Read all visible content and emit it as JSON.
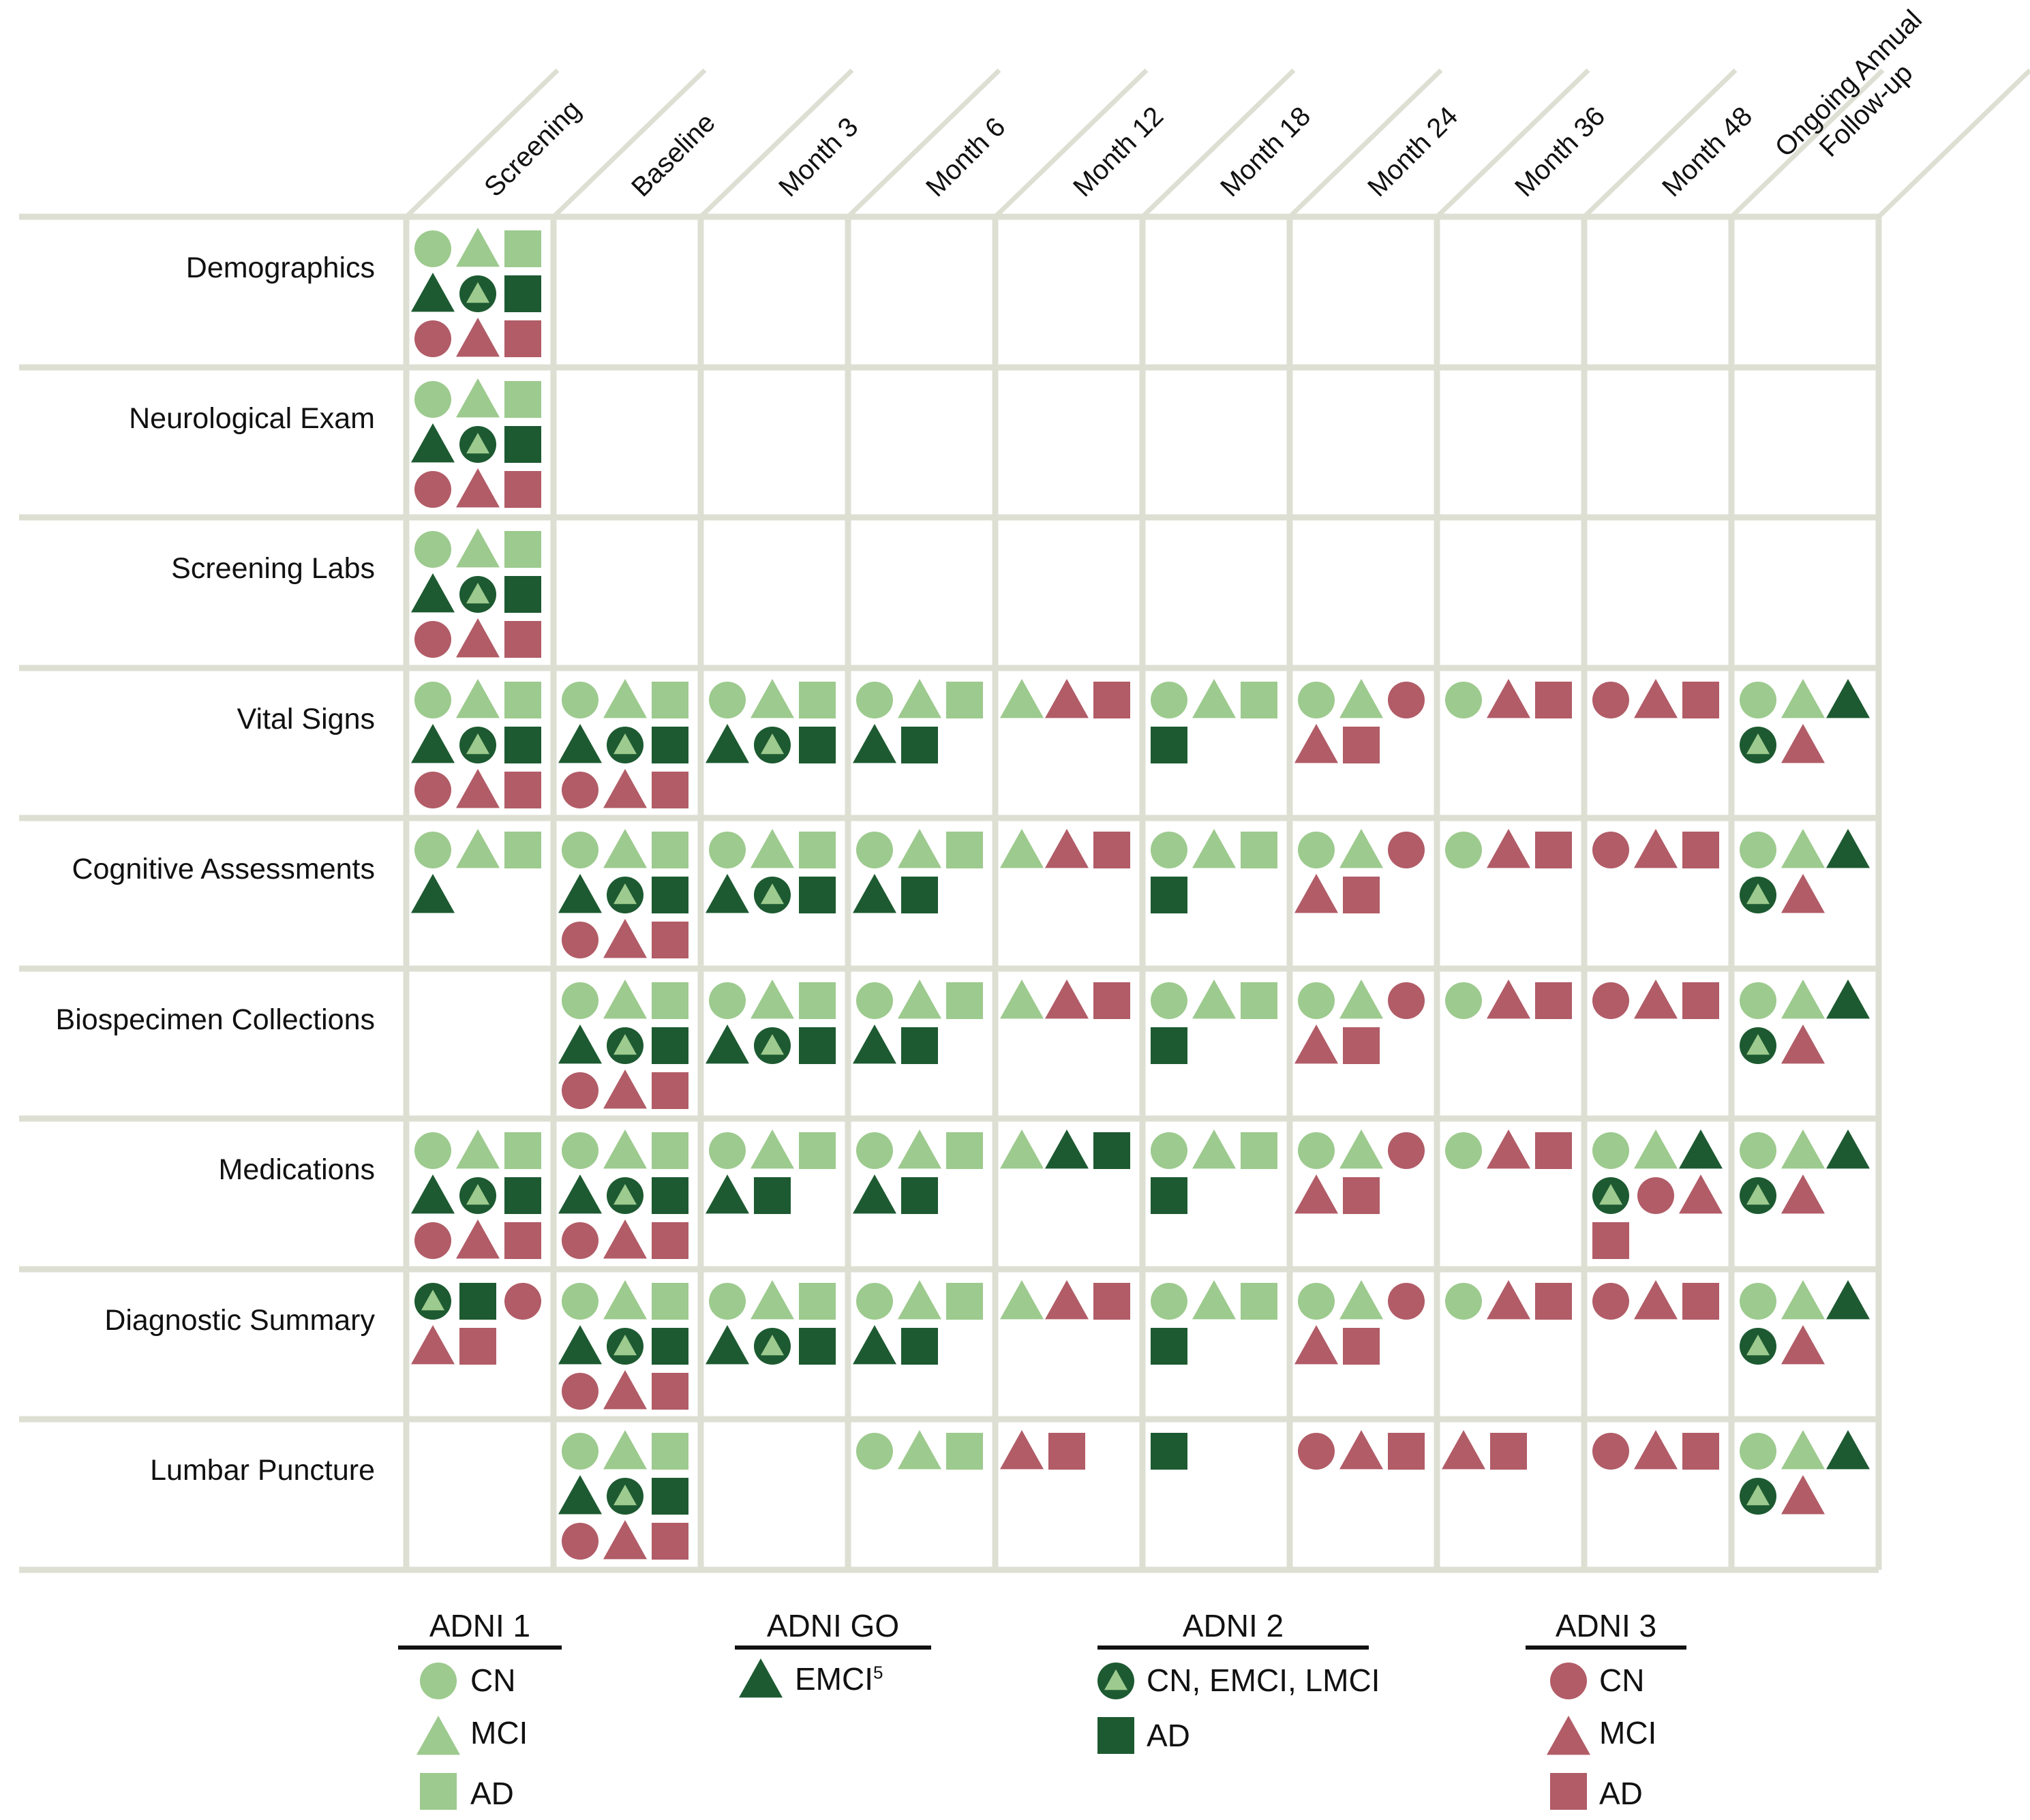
{
  "colors": {
    "adni1": "#9dca8e",
    "adnigo": "#1d5a31",
    "adni2": "#1d5a31",
    "adni2_inner": "#9dca8e",
    "adni3": "#b15c67",
    "gridline": "#dedfd3"
  },
  "columns": [
    "Screening",
    "Baseline",
    "Month 3",
    "Month 6",
    "Month 12",
    "Month 18",
    "Month 24",
    "Month 36",
    "Month 48",
    "Ongoing Annual\nFollow-up"
  ],
  "rows": [
    {
      "label": "Demographics",
      "cells": [
        [
          "c1",
          "t1",
          "s1",
          "tG",
          "c2",
          "s2",
          "c3",
          "t3",
          "s3"
        ],
        [],
        [],
        [],
        [],
        [],
        [],
        [],
        [],
        []
      ]
    },
    {
      "label": "Neurological Exam",
      "cells": [
        [
          "c1",
          "t1",
          "s1",
          "tG",
          "c2",
          "s2",
          "c3",
          "t3",
          "s3"
        ],
        [],
        [],
        [],
        [],
        [],
        [],
        [],
        [],
        []
      ]
    },
    {
      "label": "Screening Labs",
      "cells": [
        [
          "c1",
          "t1",
          "s1",
          "tG",
          "c2",
          "s2",
          "c3",
          "t3",
          "s3"
        ],
        [],
        [],
        [],
        [],
        [],
        [],
        [],
        [],
        []
      ]
    },
    {
      "label": "Vital Signs",
      "cells": [
        [
          "c1",
          "t1",
          "s1",
          "tG",
          "c2",
          "s2",
          "c3",
          "t3",
          "s3"
        ],
        [
          "c1",
          "t1",
          "s1",
          "tG",
          "c2",
          "s2",
          "c3",
          "t3",
          "s3"
        ],
        [
          "c1",
          "t1",
          "s1",
          "tG",
          "c2",
          "s2"
        ],
        [
          "c1",
          "t1",
          "s1",
          "tG",
          "s2"
        ],
        [
          "t1",
          "t3",
          "s3"
        ],
        [
          "c1",
          "t1",
          "s1",
          "s2"
        ],
        [
          "c1",
          "t1",
          "c3",
          "t3",
          "s3"
        ],
        [
          "c1",
          "t3",
          "s3"
        ],
        [
          "c3",
          "t3",
          "s3"
        ],
        [
          "c1",
          "t1",
          "tG",
          "c2",
          "t3"
        ]
      ]
    },
    {
      "label": "Cognitive Assessments",
      "cells": [
        [
          "c1",
          "t1",
          "s1",
          "tG"
        ],
        [
          "c1",
          "t1",
          "s1",
          "tG",
          "c2",
          "s2",
          "c3",
          "t3",
          "s3"
        ],
        [
          "c1",
          "t1",
          "s1",
          "tG",
          "c2",
          "s2"
        ],
        [
          "c1",
          "t1",
          "s1",
          "tG",
          "s2"
        ],
        [
          "t1",
          "t3",
          "s3"
        ],
        [
          "c1",
          "t1",
          "s1",
          "s2"
        ],
        [
          "c1",
          "t1",
          "c3",
          "t3",
          "s3"
        ],
        [
          "c1",
          "t3",
          "s3"
        ],
        [
          "c3",
          "t3",
          "s3"
        ],
        [
          "c1",
          "t1",
          "tG",
          "c2",
          "t3"
        ]
      ]
    },
    {
      "label": "Biospecimen Collections",
      "cells": [
        [],
        [
          "c1",
          "t1",
          "s1",
          "tG",
          "c2",
          "s2",
          "c3",
          "t3",
          "s3"
        ],
        [
          "c1",
          "t1",
          "s1",
          "tG",
          "c2",
          "s2"
        ],
        [
          "c1",
          "t1",
          "s1",
          "tG",
          "s2"
        ],
        [
          "t1",
          "t3",
          "s3"
        ],
        [
          "c1",
          "t1",
          "s1",
          "s2"
        ],
        [
          "c1",
          "t1",
          "c3",
          "t3",
          "s3"
        ],
        [
          "c1",
          "t3",
          "s3"
        ],
        [
          "c3",
          "t3",
          "s3"
        ],
        [
          "c1",
          "t1",
          "tG",
          "c2",
          "t3"
        ]
      ]
    },
    {
      "label": "Medications",
      "cells": [
        [
          "c1",
          "t1",
          "s1",
          "tG",
          "c2",
          "s2",
          "c3",
          "t3",
          "s3"
        ],
        [
          "c1",
          "t1",
          "s1",
          "tG",
          "c2",
          "s2",
          "c3",
          "t3",
          "s3"
        ],
        [
          "c1",
          "t1",
          "s1",
          "tG",
          "s2"
        ],
        [
          "c1",
          "t1",
          "s1",
          "tG",
          "s2"
        ],
        [
          "t1",
          "tG",
          "s2"
        ],
        [
          "c1",
          "t1",
          "s1",
          "s2"
        ],
        [
          "c1",
          "t1",
          "c3",
          "t3",
          "s3"
        ],
        [
          "c1",
          "t3",
          "s3"
        ],
        [
          "c1",
          "t1",
          "tG",
          "c2",
          "c3",
          "t3",
          "s3"
        ],
        [
          "c1",
          "t1",
          "tG",
          "c2",
          "t3"
        ]
      ]
    },
    {
      "label": "Diagnostic Summary",
      "cells": [
        [
          "c2",
          "s2",
          "c3",
          "t3",
          "s3"
        ],
        [
          "c1",
          "t1",
          "s1",
          "tG",
          "c2",
          "s2",
          "c3",
          "t3",
          "s3"
        ],
        [
          "c1",
          "t1",
          "s1",
          "tG",
          "c2",
          "s2"
        ],
        [
          "c1",
          "t1",
          "s1",
          "tG",
          "s2"
        ],
        [
          "t1",
          "t3",
          "s3"
        ],
        [
          "c1",
          "t1",
          "s1",
          "s2"
        ],
        [
          "c1",
          "t1",
          "c3",
          "t3",
          "s3"
        ],
        [
          "c1",
          "t3",
          "s3"
        ],
        [
          "c3",
          "t3",
          "s3"
        ],
        [
          "c1",
          "t1",
          "tG",
          "c2",
          "t3"
        ]
      ]
    },
    {
      "label": "Lumbar Puncture",
      "cells": [
        [],
        [
          "c1",
          "t1",
          "s1",
          "tG",
          "c2",
          "s2",
          "c3",
          "t3",
          "s3"
        ],
        [],
        [
          "c1",
          "t1",
          "s1"
        ],
        [
          "t3",
          "s3"
        ],
        [
          "s2"
        ],
        [
          "c3",
          "t3",
          "s3"
        ],
        [
          "t3",
          "s3"
        ],
        [
          "c3",
          "t3",
          "s3"
        ],
        [
          "c1",
          "t1",
          "tG",
          "c2",
          "t3"
        ]
      ]
    }
  ],
  "legend": {
    "adni1": {
      "title": "ADNI 1",
      "items": [
        {
          "shape": "c1",
          "label": "CN"
        },
        {
          "shape": "t1",
          "label": "MCI"
        },
        {
          "shape": "s1",
          "label": "AD"
        }
      ]
    },
    "adnigo": {
      "title": "ADNI GO",
      "items": [
        {
          "shape": "tG",
          "label": "EMCI",
          "sup": "5"
        }
      ]
    },
    "adni2": {
      "title": "ADNI 2",
      "items": [
        {
          "shape": "c2",
          "label": "CN, EMCI, LMCI"
        },
        {
          "shape": "s2",
          "label": "AD"
        }
      ]
    },
    "adni3": {
      "title": "ADNI 3",
      "items": [
        {
          "shape": "c3",
          "label": "CN"
        },
        {
          "shape": "t3",
          "label": "MCI"
        },
        {
          "shape": "s3",
          "label": "AD"
        }
      ]
    }
  }
}
